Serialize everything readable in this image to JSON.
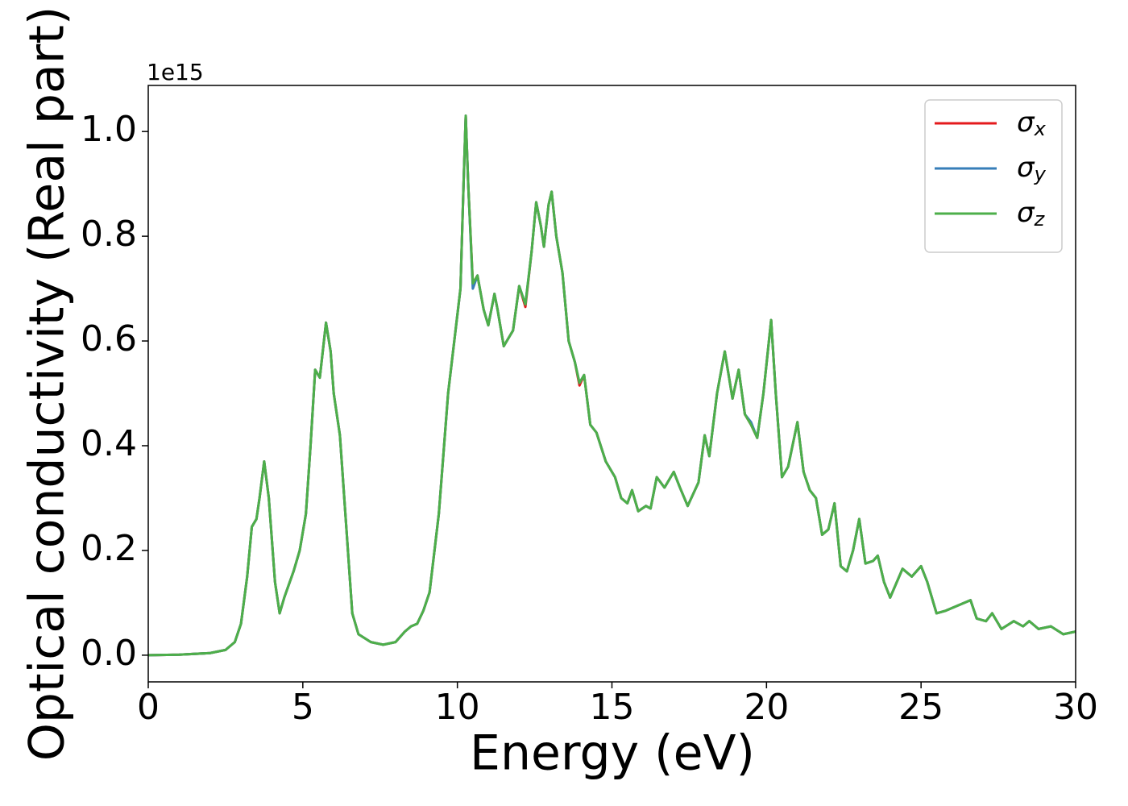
{
  "chart_data": {
    "type": "line",
    "y_label": "Optical conductivity (Real part)",
    "x_label": "Energy (eV)",
    "y_offset_label": "1e15",
    "x": [
      0,
      1,
      2,
      2.5,
      2.8,
      3.0,
      3.2,
      3.35,
      3.5,
      3.6,
      3.75,
      3.9,
      4.1,
      4.25,
      4.4,
      4.7,
      4.9,
      5.1,
      5.25,
      5.4,
      5.55,
      5.75,
      5.9,
      6.0,
      6.2,
      6.4,
      6.6,
      6.8,
      7.2,
      7.6,
      8.0,
      8.3,
      8.5,
      8.7,
      8.9,
      9.1,
      9.4,
      9.7,
      9.9,
      10.1,
      10.2,
      10.27,
      10.35,
      10.5,
      10.65,
      10.85,
      11.0,
      11.2,
      11.3,
      11.5,
      11.7,
      11.8,
      12.0,
      12.2,
      12.4,
      12.55,
      12.7,
      12.8,
      12.95,
      13.05,
      13.2,
      13.4,
      13.6,
      13.8,
      13.95,
      14.1,
      14.3,
      14.5,
      14.8,
      15.1,
      15.3,
      15.5,
      15.65,
      15.85,
      16.1,
      16.25,
      16.45,
      16.7,
      17.0,
      17.2,
      17.45,
      17.8,
      18.0,
      18.15,
      18.4,
      18.65,
      18.9,
      19.1,
      19.3,
      19.5,
      19.7,
      19.9,
      20.15,
      20.3,
      20.5,
      20.7,
      21.0,
      21.2,
      21.4,
      21.6,
      21.8,
      22.0,
      22.2,
      22.4,
      22.6,
      22.8,
      23.0,
      23.2,
      23.45,
      23.6,
      23.8,
      24.0,
      24.4,
      24.7,
      25.0,
      25.2,
      25.5,
      25.8,
      26.0,
      26.4,
      26.6,
      26.8,
      27.1,
      27.3,
      27.6,
      28.0,
      28.3,
      28.5,
      28.8,
      29.2,
      29.6,
      30.0
    ],
    "series": [
      {
        "name": "σx",
        "color": "#e41a1c",
        "values": [
          0,
          0.001,
          0.004,
          0.01,
          0.025,
          0.06,
          0.15,
          0.245,
          0.26,
          0.3,
          0.37,
          0.3,
          0.14,
          0.08,
          0.11,
          0.16,
          0.2,
          0.27,
          0.4,
          0.545,
          0.53,
          0.635,
          0.58,
          0.5,
          0.42,
          0.25,
          0.08,
          0.04,
          0.025,
          0.02,
          0.025,
          0.045,
          0.055,
          0.06,
          0.085,
          0.12,
          0.27,
          0.5,
          0.6,
          0.7,
          0.9,
          1.03,
          0.9,
          0.71,
          0.725,
          0.66,
          0.63,
          0.69,
          0.66,
          0.59,
          0.61,
          0.62,
          0.705,
          0.665,
          0.77,
          0.865,
          0.82,
          0.78,
          0.86,
          0.885,
          0.8,
          0.73,
          0.6,
          0.56,
          0.515,
          0.535,
          0.44,
          0.425,
          0.37,
          0.34,
          0.3,
          0.29,
          0.315,
          0.275,
          0.285,
          0.28,
          0.34,
          0.32,
          0.35,
          0.32,
          0.285,
          0.33,
          0.42,
          0.38,
          0.5,
          0.58,
          0.49,
          0.545,
          0.46,
          0.44,
          0.415,
          0.5,
          0.64,
          0.5,
          0.34,
          0.36,
          0.445,
          0.35,
          0.315,
          0.3,
          0.23,
          0.24,
          0.29,
          0.17,
          0.16,
          0.2,
          0.26,
          0.175,
          0.18,
          0.19,
          0.14,
          0.11,
          0.165,
          0.15,
          0.17,
          0.14,
          0.08,
          0.085,
          0.09,
          0.1,
          0.105,
          0.07,
          0.065,
          0.08,
          0.05,
          0.065,
          0.055,
          0.065,
          0.05,
          0.055,
          0.04,
          0.045
        ]
      },
      {
        "name": "σy",
        "color": "#377eb8",
        "values": [
          0,
          0.001,
          0.004,
          0.01,
          0.025,
          0.06,
          0.15,
          0.245,
          0.26,
          0.3,
          0.37,
          0.3,
          0.14,
          0.08,
          0.11,
          0.16,
          0.2,
          0.27,
          0.4,
          0.545,
          0.53,
          0.635,
          0.58,
          0.5,
          0.42,
          0.25,
          0.08,
          0.04,
          0.025,
          0.02,
          0.025,
          0.045,
          0.055,
          0.06,
          0.085,
          0.12,
          0.27,
          0.5,
          0.6,
          0.7,
          0.9,
          1.03,
          0.9,
          0.7,
          0.725,
          0.66,
          0.63,
          0.69,
          0.66,
          0.59,
          0.61,
          0.62,
          0.705,
          0.67,
          0.77,
          0.865,
          0.82,
          0.78,
          0.86,
          0.885,
          0.8,
          0.73,
          0.6,
          0.56,
          0.52,
          0.535,
          0.44,
          0.425,
          0.37,
          0.34,
          0.3,
          0.29,
          0.315,
          0.275,
          0.285,
          0.28,
          0.34,
          0.32,
          0.35,
          0.32,
          0.285,
          0.33,
          0.42,
          0.38,
          0.5,
          0.58,
          0.49,
          0.545,
          0.46,
          0.445,
          0.415,
          0.5,
          0.64,
          0.5,
          0.34,
          0.36,
          0.445,
          0.35,
          0.315,
          0.3,
          0.23,
          0.24,
          0.29,
          0.17,
          0.16,
          0.2,
          0.26,
          0.175,
          0.18,
          0.19,
          0.14,
          0.11,
          0.165,
          0.15,
          0.17,
          0.14,
          0.08,
          0.085,
          0.09,
          0.1,
          0.105,
          0.07,
          0.065,
          0.08,
          0.05,
          0.065,
          0.055,
          0.065,
          0.05,
          0.055,
          0.04,
          0.045
        ]
      },
      {
        "name": "σz",
        "color": "#4daf4a",
        "values": [
          0,
          0.001,
          0.004,
          0.01,
          0.025,
          0.06,
          0.15,
          0.245,
          0.26,
          0.3,
          0.37,
          0.3,
          0.14,
          0.08,
          0.11,
          0.16,
          0.2,
          0.27,
          0.4,
          0.545,
          0.53,
          0.635,
          0.58,
          0.5,
          0.42,
          0.25,
          0.08,
          0.04,
          0.025,
          0.02,
          0.025,
          0.045,
          0.055,
          0.06,
          0.085,
          0.12,
          0.27,
          0.5,
          0.6,
          0.7,
          0.9,
          1.03,
          0.9,
          0.71,
          0.725,
          0.66,
          0.63,
          0.69,
          0.66,
          0.59,
          0.61,
          0.62,
          0.705,
          0.67,
          0.77,
          0.865,
          0.82,
          0.78,
          0.86,
          0.885,
          0.8,
          0.73,
          0.6,
          0.56,
          0.52,
          0.535,
          0.44,
          0.425,
          0.37,
          0.34,
          0.3,
          0.29,
          0.315,
          0.275,
          0.285,
          0.28,
          0.34,
          0.32,
          0.35,
          0.32,
          0.285,
          0.33,
          0.42,
          0.38,
          0.5,
          0.58,
          0.49,
          0.545,
          0.46,
          0.44,
          0.415,
          0.5,
          0.64,
          0.5,
          0.34,
          0.36,
          0.445,
          0.35,
          0.315,
          0.3,
          0.23,
          0.24,
          0.29,
          0.17,
          0.16,
          0.2,
          0.26,
          0.175,
          0.18,
          0.19,
          0.14,
          0.11,
          0.165,
          0.15,
          0.17,
          0.14,
          0.08,
          0.085,
          0.09,
          0.1,
          0.105,
          0.07,
          0.065,
          0.08,
          0.05,
          0.065,
          0.055,
          0.065,
          0.05,
          0.055,
          0.04,
          0.045
        ]
      }
    ],
    "xlim": [
      0,
      30
    ],
    "xticks": [
      0,
      5,
      10,
      15,
      20,
      25,
      30
    ],
    "ylim": [
      -0.051,
      1.088
    ],
    "yticks": [
      {
        "value": 0,
        "label": "0.0"
      },
      0.2,
      0.4,
      0.6,
      0.8,
      {
        "value": 1,
        "label": "1.0"
      }
    ],
    "grid": false,
    "legend": "upper right"
  }
}
